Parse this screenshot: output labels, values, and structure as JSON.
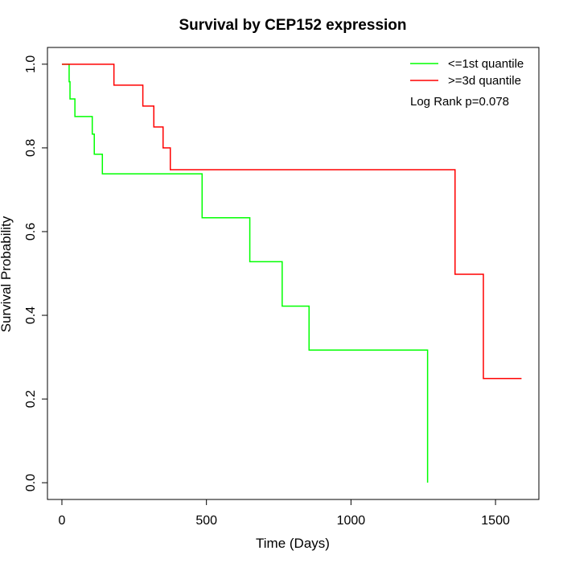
{
  "chart_data": {
    "type": "line",
    "title": "Survival by CEP152 expression",
    "xlabel": "Time (Days)",
    "ylabel": "Survival Probability",
    "xlim": [
      -50,
      1650
    ],
    "ylim": [
      -0.04,
      1.04
    ],
    "x_ticks": [
      0,
      500,
      1000,
      1500
    ],
    "y_ticks": [
      0.0,
      0.2,
      0.4,
      0.6,
      0.8,
      1.0
    ],
    "x_tick_labels": [
      "0",
      "500",
      "1000",
      "1500"
    ],
    "y_tick_labels": [
      "0.0",
      "0.2",
      "0.4",
      "0.6",
      "0.8",
      "1.0"
    ],
    "grid": false,
    "legend_position": "top-right",
    "annotation": "Log Rank p=0.078",
    "series": [
      {
        "name": "<=1st quantile",
        "color": "#00ff00",
        "steps": [
          [
            0,
            1.0
          ],
          [
            25,
            0.958
          ],
          [
            28,
            0.917
          ],
          [
            45,
            0.875
          ],
          [
            105,
            0.833
          ],
          [
            112,
            0.785
          ],
          [
            140,
            0.738
          ],
          [
            485,
            0.633
          ],
          [
            650,
            0.528
          ],
          [
            762,
            0.422
          ],
          [
            855,
            0.317
          ],
          [
            1265,
            0.0
          ]
        ],
        "end_x": 1265
      },
      {
        "name": ">=3d quantile",
        "color": "#ff0000",
        "steps": [
          [
            0,
            1.0
          ],
          [
            180,
            0.95
          ],
          [
            280,
            0.9
          ],
          [
            318,
            0.85
          ],
          [
            350,
            0.8
          ],
          [
            375,
            0.748
          ],
          [
            1360,
            0.498
          ],
          [
            1458,
            0.249
          ]
        ],
        "end_x": 1590
      }
    ]
  }
}
